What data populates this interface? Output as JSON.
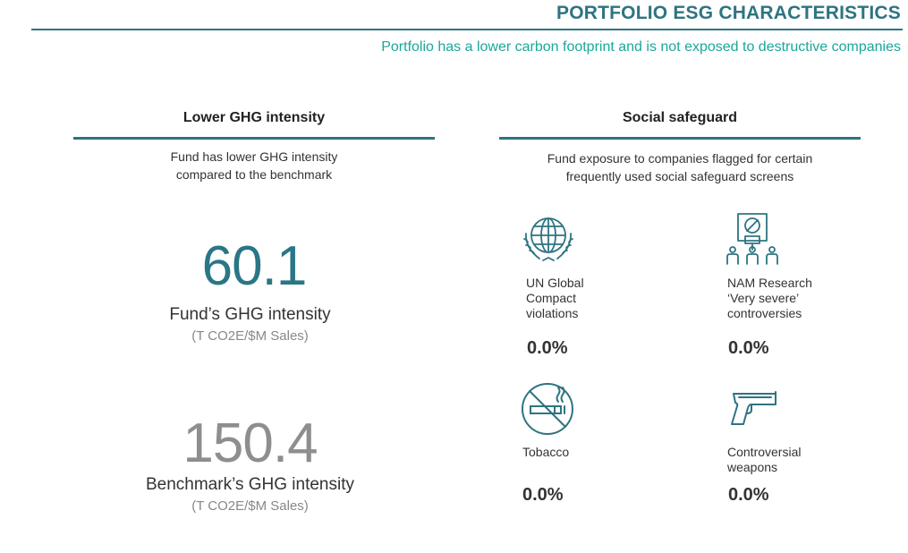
{
  "header": {
    "title": "PORTFOLIO ESG CHARACTERISTICS",
    "subtitle": "Portfolio has a lower carbon footprint and is not exposed to destructive companies"
  },
  "ghg": {
    "title": "Lower GHG intensity",
    "description_line1": "Fund has lower GHG intensity",
    "description_line2": "compared to  the benchmark",
    "fund_value": "60.1",
    "fund_label": "Fund’s GHG intensity",
    "fund_unit": "(T CO2E/$M Sales)",
    "benchmark_value": "150.4",
    "benchmark_label": "Benchmark’s GHG intensity",
    "benchmark_unit": "(T CO2E/$M Sales)"
  },
  "social": {
    "title": "Social safeguard",
    "description_line1": "Fund exposure to companies flagged for certain",
    "description_line2": "frequently used social safeguard screens",
    "items": [
      {
        "icon": "globe-laurel-icon",
        "label_lines": [
          "UN Global",
          "Compact",
          "violations"
        ],
        "value": "0.0%"
      },
      {
        "icon": "protest-sign-icon",
        "label_lines": [
          "NAM Research",
          "‘Very severe’",
          "controversies"
        ],
        "value": "0.0%"
      },
      {
        "icon": "no-smoking-icon",
        "label_lines": [
          "Tobacco"
        ],
        "value": "0.0%"
      },
      {
        "icon": "pistol-icon",
        "label_lines": [
          "Controversial",
          "weapons"
        ],
        "value": "0.0%"
      }
    ]
  },
  "colors": {
    "title": "#2e7481",
    "subtitle": "#1aa89a",
    "fund_number": "#2a7686",
    "benchmark_number": "#8e8e8e",
    "icon": "#2e7481"
  }
}
